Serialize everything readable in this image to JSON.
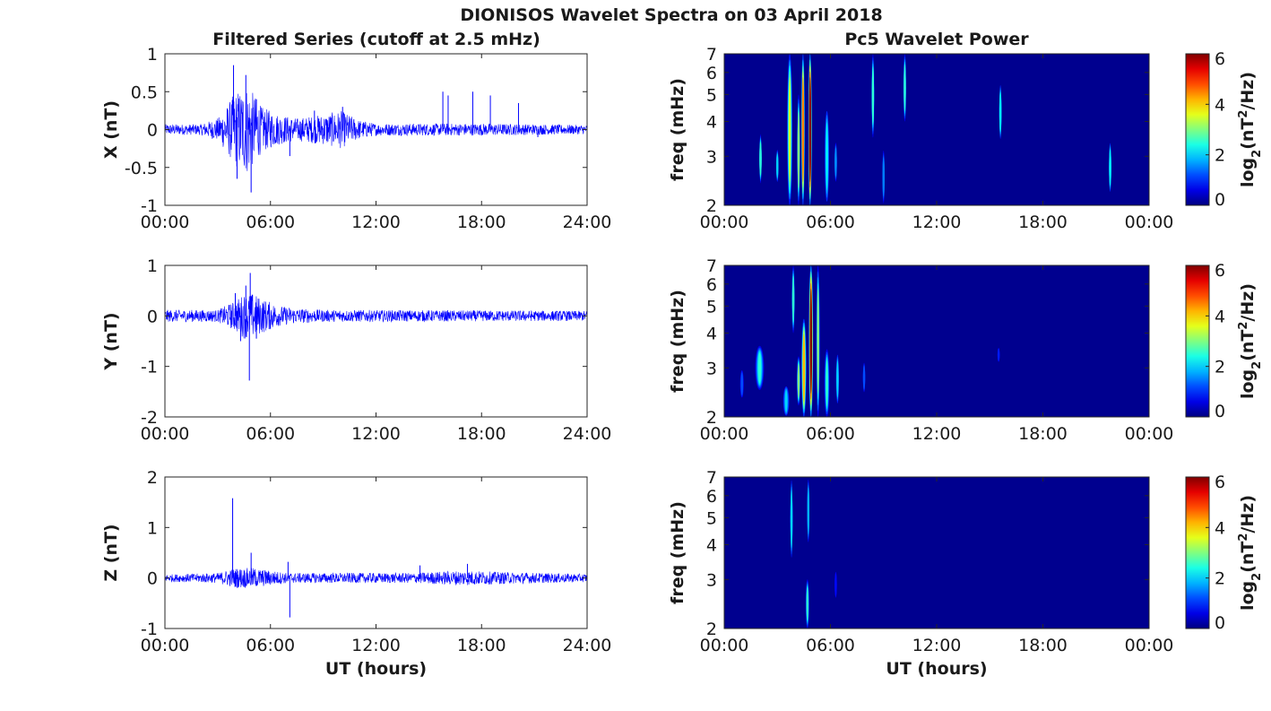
{
  "figure": {
    "title": "DIONISOS Wavelet Spectra on 03 April 2018",
    "left_title": "Filtered Series (cutoff at 2.5 mHz)",
    "right_title": "Pc5 Wavelet Power"
  },
  "colors": {
    "series": "#0000ff",
    "heatmap_background": "#00008f",
    "colormap": "jet"
  },
  "chart_data": [
    {
      "type": "line",
      "name": "X filtered series",
      "ylabel": "X (nT)",
      "xlabel": "",
      "xlim": [
        0,
        24
      ],
      "ylim": [
        -1,
        1
      ],
      "xticks": [
        "00:00",
        "06:00",
        "12:00",
        "18:00",
        "24:00"
      ],
      "yticks": [
        "1",
        "0.5",
        "0",
        "-0.5",
        "-1"
      ],
      "noise_baseline": 0.06,
      "envelope": [
        [
          0,
          0.07
        ],
        [
          2,
          0.07
        ],
        [
          3,
          0.15
        ],
        [
          3.5,
          0.3
        ],
        [
          4,
          0.5
        ],
        [
          4.7,
          0.6
        ],
        [
          5.5,
          0.3
        ],
        [
          6.5,
          0.2
        ],
        [
          7.5,
          0.15
        ],
        [
          9,
          0.2
        ],
        [
          10,
          0.25
        ],
        [
          11,
          0.13
        ],
        [
          12,
          0.08
        ],
        [
          18,
          0.08
        ],
        [
          24,
          0.06
        ]
      ],
      "spikes": [
        [
          3.9,
          0.85
        ],
        [
          4.1,
          -0.65
        ],
        [
          4.6,
          0.72
        ],
        [
          4.9,
          -0.83
        ],
        [
          5.2,
          0.4
        ],
        [
          7.1,
          -0.35
        ],
        [
          8.5,
          0.25
        ],
        [
          10.1,
          0.3
        ],
        [
          15.8,
          0.5
        ],
        [
          16.1,
          0.45
        ],
        [
          17.5,
          0.5
        ],
        [
          18.5,
          0.45
        ],
        [
          20.1,
          0.35
        ],
        [
          21.2,
          -0.1
        ]
      ]
    },
    {
      "type": "heatmap",
      "name": "X wavelet power",
      "ylabel": "freq (mHz)",
      "xlabel": "",
      "xlim": [
        0,
        24
      ],
      "ylim": [
        2,
        7
      ],
      "yscale": "log",
      "xticks": [
        "00:00",
        "06:00",
        "12:00",
        "18:00",
        "00:00"
      ],
      "yticks": [
        "7",
        "6",
        "5",
        "4",
        "3",
        "2"
      ],
      "colorbar": {
        "label": "log2(nT2/Hz)",
        "ticks": [
          "6",
          "4",
          "2",
          "0"
        ],
        "range": [
          0,
          6
        ]
      },
      "features": [
        [
          4.85,
          2,
          7,
          0.1,
          6
        ],
        [
          4.45,
          2,
          7,
          0.1,
          4.5
        ],
        [
          3.7,
          2,
          7,
          0.15,
          3.5
        ],
        [
          4.2,
          2,
          5,
          0.08,
          3
        ],
        [
          5.8,
          2,
          4.5,
          0.15,
          2.2
        ],
        [
          2.05,
          2.4,
          3.6,
          0.06,
          2.5
        ],
        [
          3.0,
          2.4,
          3.2,
          0.08,
          2
        ],
        [
          6.3,
          2.4,
          3.4,
          0.08,
          1.6
        ],
        [
          8.4,
          3.5,
          7,
          0.08,
          2.5
        ],
        [
          9.0,
          2,
          3.2,
          0.08,
          1.5
        ],
        [
          10.2,
          4,
          7,
          0.08,
          2.5
        ],
        [
          15.6,
          3.4,
          5.5,
          0.06,
          2.2
        ],
        [
          21.8,
          2.2,
          3.4,
          0.06,
          2.2
        ]
      ]
    },
    {
      "type": "line",
      "name": "Y filtered series",
      "ylabel": "Y (nT)",
      "xlabel": "",
      "xlim": [
        0,
        24
      ],
      "ylim": [
        -2,
        1
      ],
      "xticks": [
        "00:00",
        "06:00",
        "12:00",
        "18:00",
        "24:00"
      ],
      "yticks": [
        "1",
        "0",
        "-1",
        "-2"
      ],
      "noise_baseline": 0.12,
      "envelope": [
        [
          0,
          0.12
        ],
        [
          3,
          0.12
        ],
        [
          4,
          0.3
        ],
        [
          4.5,
          0.45
        ],
        [
          5,
          0.45
        ],
        [
          5.5,
          0.35
        ],
        [
          6.5,
          0.2
        ],
        [
          7.5,
          0.15
        ],
        [
          9,
          0.12
        ],
        [
          24,
          0.1
        ]
      ],
      "spikes": [
        [
          4.0,
          0.45
        ],
        [
          4.6,
          0.6
        ],
        [
          4.85,
          0.85
        ],
        [
          4.8,
          -1.28
        ],
        [
          5.2,
          -0.45
        ],
        [
          4.3,
          -0.5
        ]
      ]
    },
    {
      "type": "heatmap",
      "name": "Y wavelet power",
      "ylabel": "freq (mHz)",
      "xlabel": "",
      "xlim": [
        0,
        24
      ],
      "ylim": [
        2,
        7
      ],
      "yscale": "log",
      "xticks": [
        "00:00",
        "06:00",
        "12:00",
        "18:00",
        "00:00"
      ],
      "yticks": [
        "7",
        "6",
        "5",
        "4",
        "3",
        "2"
      ],
      "colorbar": {
        "label": "log2(nT2/Hz)",
        "ticks": [
          "6",
          "4",
          "2",
          "0"
        ],
        "range": [
          0,
          6
        ]
      },
      "features": [
        [
          4.9,
          2,
          7,
          0.12,
          6
        ],
        [
          4.5,
          2,
          4.5,
          0.14,
          4.2
        ],
        [
          5.3,
          2,
          7,
          0.1,
          3
        ],
        [
          4.2,
          2.2,
          3.3,
          0.1,
          3
        ],
        [
          3.9,
          4,
          7,
          0.08,
          2.5
        ],
        [
          2.0,
          2.5,
          3.6,
          0.25,
          2.5
        ],
        [
          1.0,
          2.3,
          3,
          0.15,
          1.2
        ],
        [
          5.8,
          2,
          3.5,
          0.15,
          2.5
        ],
        [
          6.4,
          2.2,
          3.4,
          0.1,
          2
        ],
        [
          3.5,
          2,
          2.6,
          0.2,
          2
        ],
        [
          7.9,
          2.4,
          3.2,
          0.06,
          1.2
        ],
        [
          15.5,
          3.1,
          3.6,
          0.05,
          0.9
        ]
      ]
    },
    {
      "type": "line",
      "name": "Z filtered series",
      "ylabel": "Z (nT)",
      "xlabel": "UT (hours)",
      "xlim": [
        0,
        24
      ],
      "ylim": [
        -1,
        2
      ],
      "xticks": [
        "00:00",
        "06:00",
        "12:00",
        "18:00",
        "24:00"
      ],
      "yticks": [
        "2",
        "1",
        "0",
        "-1"
      ],
      "noise_baseline": 0.07,
      "envelope": [
        [
          0,
          0.07
        ],
        [
          3,
          0.1
        ],
        [
          4,
          0.2
        ],
        [
          5,
          0.2
        ],
        [
          6,
          0.15
        ],
        [
          7,
          0.1
        ],
        [
          14,
          0.1
        ],
        [
          17,
          0.15
        ],
        [
          19,
          0.12
        ],
        [
          24,
          0.08
        ]
      ],
      "spikes": [
        [
          3.85,
          1.58
        ],
        [
          4.9,
          0.5
        ],
        [
          7.1,
          -0.78
        ],
        [
          7.0,
          0.32
        ],
        [
          14.5,
          0.25
        ],
        [
          17.2,
          0.28
        ]
      ]
    },
    {
      "type": "heatmap",
      "name": "Z wavelet power",
      "ylabel": "freq (mHz)",
      "xlabel": "UT (hours)",
      "xlim": [
        0,
        24
      ],
      "ylim": [
        2,
        7
      ],
      "yscale": "log",
      "xticks": [
        "00:00",
        "06:00",
        "12:00",
        "18:00",
        "00:00"
      ],
      "yticks": [
        "7",
        "6",
        "5",
        "4",
        "3",
        "2"
      ],
      "colorbar": {
        "label": "log2(nT2/Hz)",
        "ticks": [
          "6",
          "4",
          "2",
          "0"
        ],
        "range": [
          0,
          6
        ]
      },
      "features": [
        [
          3.8,
          3.5,
          7,
          0.07,
          2
        ],
        [
          4.7,
          2,
          3,
          0.1,
          2.5
        ],
        [
          4.75,
          4,
          7,
          0.06,
          1.8
        ],
        [
          6.3,
          2.5,
          3.3,
          0.05,
          0.8
        ]
      ]
    }
  ]
}
